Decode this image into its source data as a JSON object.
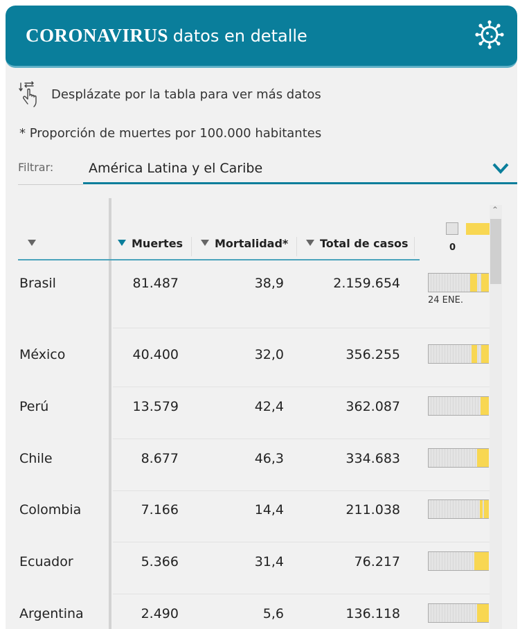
{
  "header": {
    "title_bold": "CORONAVIRUS",
    "title_light": "datos en detalle",
    "icon": "virus-icon",
    "background": "#0a7e9b"
  },
  "hint": {
    "icon": "swipe-hand-icon",
    "text": "Desplázate por la tabla para ver más datos"
  },
  "footnote": "* Proporción de muertes por 100.000 habitantes",
  "filter": {
    "label": "Filtrar:",
    "value": "América Latina y el Caribe",
    "icon": "chevron-down-icon"
  },
  "table": {
    "columns": [
      "",
      "Muertes",
      "Mortalidad*",
      "Total de casos"
    ],
    "legend_zero": "0",
    "sparkline_date": "24 ENE.",
    "accent": "#f8d752",
    "rows": [
      {
        "country": "Brasil",
        "deaths": "81.487",
        "mortality": "38,9",
        "cases": "2.159.654"
      },
      {
        "country": "México",
        "deaths": "40.400",
        "mortality": "32,0",
        "cases": "356.255"
      },
      {
        "country": "Perú",
        "deaths": "13.579",
        "mortality": "42,4",
        "cases": "362.087"
      },
      {
        "country": "Chile",
        "deaths": "8.677",
        "mortality": "46,3",
        "cases": "334.683"
      },
      {
        "country": "Colombia",
        "deaths": "7.166",
        "mortality": "14,4",
        "cases": "211.038"
      },
      {
        "country": "Ecuador",
        "deaths": "5.366",
        "mortality": "31,4",
        "cases": "76.217"
      },
      {
        "country": "Argentina",
        "deaths": "2.490",
        "mortality": "5,6",
        "cases": "136.118"
      }
    ]
  }
}
